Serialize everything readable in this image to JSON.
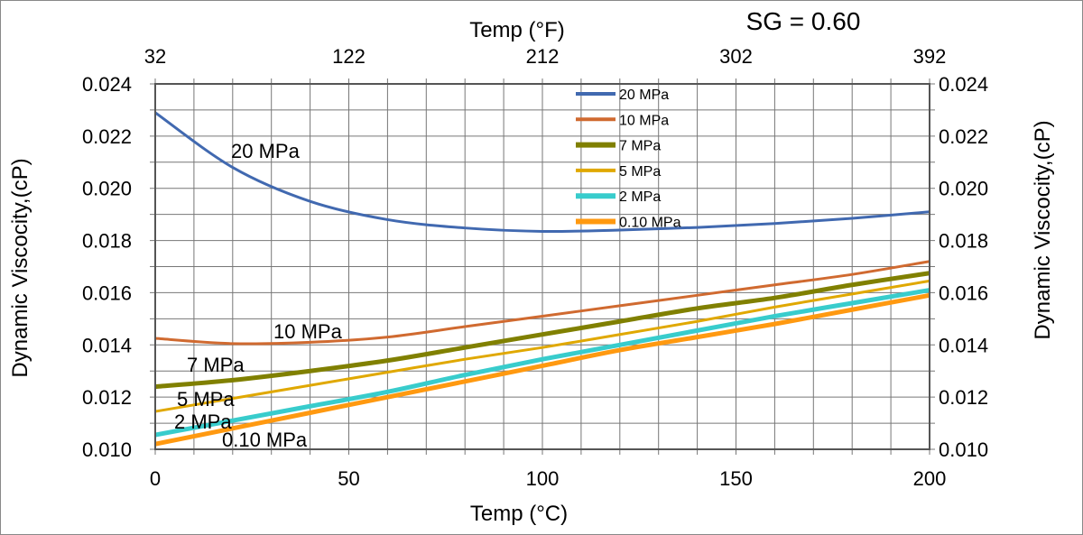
{
  "chart_data": {
    "type": "line",
    "annotation": "SG = 0.60",
    "xlabel": "Temp (°C)",
    "x2label": "Temp (°F)",
    "ylabel": "Dynamic Viscocity,(cP)",
    "y2label": "Dynamic Viscocity,(cP)",
    "xlim": [
      0,
      200
    ],
    "ylim": [
      0.01,
      0.024
    ],
    "xticks": [
      "0",
      "50",
      "100",
      "150",
      "200"
    ],
    "x2ticks": [
      "32",
      "122",
      "212",
      "302",
      "392"
    ],
    "yticks": [
      "0.010",
      "0.012",
      "0.014",
      "0.016",
      "0.018",
      "0.020",
      "0.022",
      "0.024"
    ],
    "grid": true,
    "legend_position": "top-center",
    "x": [
      0,
      20,
      40,
      60,
      80,
      100,
      120,
      140,
      160,
      180,
      200
    ],
    "series": [
      {
        "name": "20 MPa",
        "color": "#4169b0",
        "label": "20 MPa",
        "values": [
          0.0229,
          0.0208,
          0.0195,
          0.0188,
          0.01848,
          0.01835,
          0.0184,
          0.0185,
          0.01865,
          0.01885,
          0.0191
        ]
      },
      {
        "name": "10 MPa",
        "color": "#d06a30",
        "label": "10 MPa",
        "values": [
          0.01425,
          0.01405,
          0.0141,
          0.0143,
          0.0147,
          0.0151,
          0.0155,
          0.0159,
          0.0163,
          0.0167,
          0.0172
        ]
      },
      {
        "name": "7 MPa",
        "color": "#808000",
        "label": "7 MPa",
        "values": [
          0.0124,
          0.01265,
          0.013,
          0.0134,
          0.0139,
          0.0144,
          0.0149,
          0.0154,
          0.0158,
          0.0163,
          0.01675
        ]
      },
      {
        "name": "5 MPa",
        "color": "#e0a800",
        "label": "5 MPa",
        "values": [
          0.01145,
          0.01195,
          0.01245,
          0.01295,
          0.01345,
          0.0139,
          0.0144,
          0.0149,
          0.01545,
          0.01595,
          0.01645
        ]
      },
      {
        "name": "2 MPa",
        "color": "#38cccc",
        "label": "2 MPa",
        "values": [
          0.01055,
          0.0111,
          0.01165,
          0.0122,
          0.01285,
          0.01345,
          0.014,
          0.01455,
          0.0151,
          0.0156,
          0.0161
        ]
      },
      {
        "name": "0.10 MPa",
        "color": "#ff9910",
        "label": "0.10 MPa",
        "values": [
          0.0102,
          0.0108,
          0.0114,
          0.012,
          0.0126,
          0.0132,
          0.0138,
          0.0143,
          0.0148,
          0.01535,
          0.0159
        ]
      }
    ]
  }
}
